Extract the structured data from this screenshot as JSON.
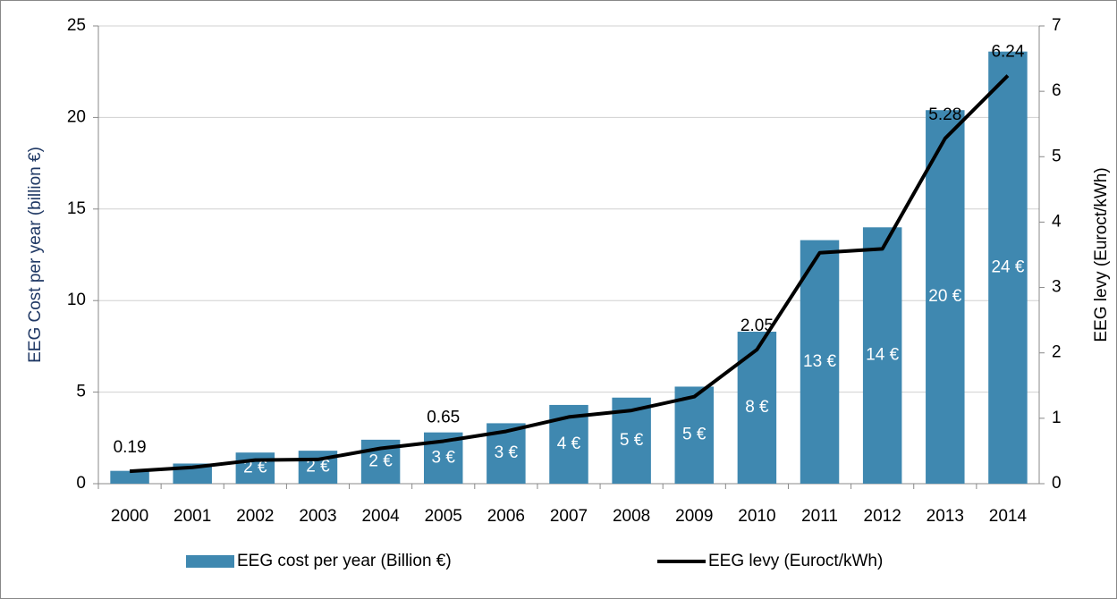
{
  "chart_data": {
    "type": "bar-line",
    "y_label": "EEG Cost per year (billion €)",
    "y2_label": "EEG levy  (Euroct/kWh)",
    "categories": [
      "2000",
      "2001",
      "2002",
      "2003",
      "2004",
      "2005",
      "2006",
      "2007",
      "2008",
      "2009",
      "2010",
      "2011",
      "2012",
      "2013",
      "2014"
    ],
    "series": [
      {
        "name": "EEG cost per year (Billion €)",
        "color": "#3f88b0",
        "kind": "bar",
        "values": [
          0.7,
          1.1,
          1.7,
          1.8,
          2.4,
          2.8,
          3.3,
          4.3,
          4.7,
          5.3,
          8.3,
          13.3,
          14.0,
          20.4,
          23.6
        ],
        "value_labels": [
          null,
          null,
          "2 €",
          "2 €",
          "2 €",
          "3 €",
          "3 €",
          "4 €",
          "5 €",
          "5 €",
          "8 €",
          "13 €",
          "14 €",
          "20 €",
          "24 €"
        ]
      },
      {
        "name": "EEG levy (Euroct/kWh)",
        "color": "#000000",
        "kind": "line",
        "axis": "y2",
        "values": [
          0.19,
          0.25,
          0.36,
          0.37,
          0.54,
          0.65,
          0.8,
          1.02,
          1.12,
          1.33,
          2.05,
          3.53,
          3.59,
          5.28,
          6.24
        ],
        "value_labels": [
          "0.19",
          null,
          null,
          null,
          null,
          "0.65",
          null,
          null,
          null,
          null,
          "2.05",
          null,
          null,
          "5.28",
          "6.24"
        ]
      }
    ],
    "ylim": [
      0,
      25
    ],
    "yticks": [
      0,
      5,
      10,
      15,
      20,
      25
    ],
    "y2lim": [
      0,
      7
    ],
    "y2ticks": [
      0,
      1,
      2,
      3,
      4,
      5,
      6,
      7
    ],
    "grid": true,
    "legend": "bottom"
  }
}
